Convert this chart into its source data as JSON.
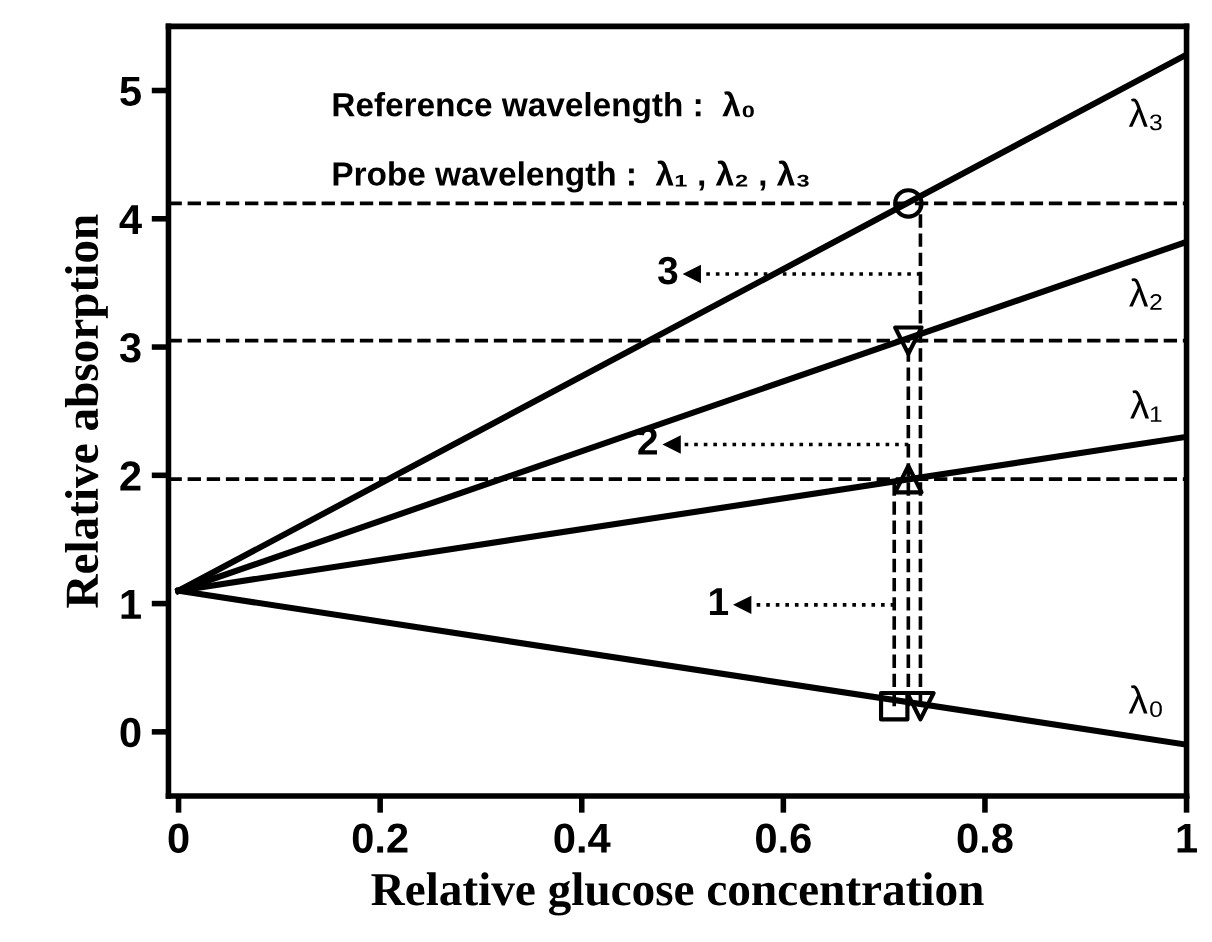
{
  "chart_data": {
    "type": "line",
    "xlabel": "Relative glucose concentration",
    "ylabel": "Relative absorption",
    "xlim": [
      -0.01,
      1.0
    ],
    "xticks": [
      0,
      0.2,
      0.4,
      0.6,
      0.8,
      1
    ],
    "ylim": [
      -0.5,
      5.5
    ],
    "yticks": [
      0,
      1,
      2,
      3,
      4,
      5
    ],
    "grid": false,
    "legend": false,
    "series": [
      {
        "color": "#000000",
        "x": [
          0,
          1
        ],
        "values": [
          1.1,
          5.28
        ]
      },
      {
        "color": "#000000",
        "x": [
          0,
          1
        ],
        "values": [
          1.1,
          3.82
        ]
      },
      {
        "color": "#000000",
        "x": [
          0,
          1
        ],
        "values": [
          1.1,
          2.3
        ]
      },
      {
        "color": "#000000",
        "x": [
          0,
          1
        ],
        "values": [
          1.1,
          -0.1
        ]
      },
      {
        "color": "#000000",
        "line_style": "dashed",
        "x": [
          0.71,
          0.71
        ],
        "values": [
          0.2,
          1.97
        ]
      },
      {
        "color": "#000000",
        "line_style": "dashed",
        "x": [
          0.724,
          0.724
        ],
        "values": [
          0.2,
          3.05
        ]
      },
      {
        "color": "#000000",
        "line_style": "dashed",
        "x": [
          0.736,
          0.736
        ],
        "values": [
          0.2,
          4.12
        ]
      },
      {
        "type": "line",
        "color": "#000000",
        "line_style": "dotted",
        "marker": "triangle",
        "x": [
          0.736,
          0.51
        ],
        "values": [
          3.57,
          3.57
        ]
      },
      {
        "type": "line",
        "color": "#000000",
        "line_style": "dotted",
        "marker": "triangle",
        "x": [
          0.724,
          0.49
        ],
        "values": [
          2.24,
          2.24
        ]
      },
      {
        "type": "line",
        "color": "#000000",
        "line_style": "dotted",
        "marker": "triangle",
        "x": [
          0.71,
          0.56
        ],
        "values": [
          0.99,
          0.99
        ]
      },
      {
        "type": "scatter",
        "color": "#000000",
        "marker": "circle",
        "x": [
          0.724
        ],
        "values": [
          4.12
        ]
      },
      {
        "type": "scatter",
        "color": "#000000",
        "marker": "triangle_down",
        "x": [
          0.724,
          0.736
        ],
        "values": [
          3.05,
          0.2
        ]
      },
      {
        "type": "scatter",
        "color": "#000000",
        "marker": "triangle",
        "x": [
          0.724
        ],
        "values": [
          1.97
        ]
      },
      {
        "type": "scatter",
        "color": "#000000",
        "marker": "square",
        "x": [
          0.71
        ],
        "values": [
          0.2
        ]
      }
    ],
    "ref_lines": [
      {
        "axis": "y",
        "value": 4.12,
        "line_style": "dashed",
        "color": "#000000"
      },
      {
        "axis": "y",
        "value": 3.05,
        "line_style": "dashed",
        "color": "#000000"
      },
      {
        "axis": "y",
        "value": 1.97,
        "line_style": "dashed",
        "color": "#000000"
      }
    ],
    "annotations": [
      "Reference wavelength :  λ₀",
      "Probe wavelength :  λ₁ , λ₂ , λ₃",
      {
        "text": "λ₃",
        "x": 0.96,
        "y": 5.11
      },
      {
        "text": "λ₂",
        "x": 0.96,
        "y": 3.71
      },
      {
        "text": "λ₁",
        "x": 0.96,
        "y": 2.25
      },
      {
        "text": "λ₀",
        "x": 0.96,
        "y": -0.05
      },
      {
        "text": "3",
        "x": 0.51,
        "y": 3.57
      },
      {
        "text": "2",
        "x": 0.49,
        "y": 2.24
      },
      {
        "text": "1",
        "x": 0.56,
        "y": 0.99
      }
    ]
  }
}
